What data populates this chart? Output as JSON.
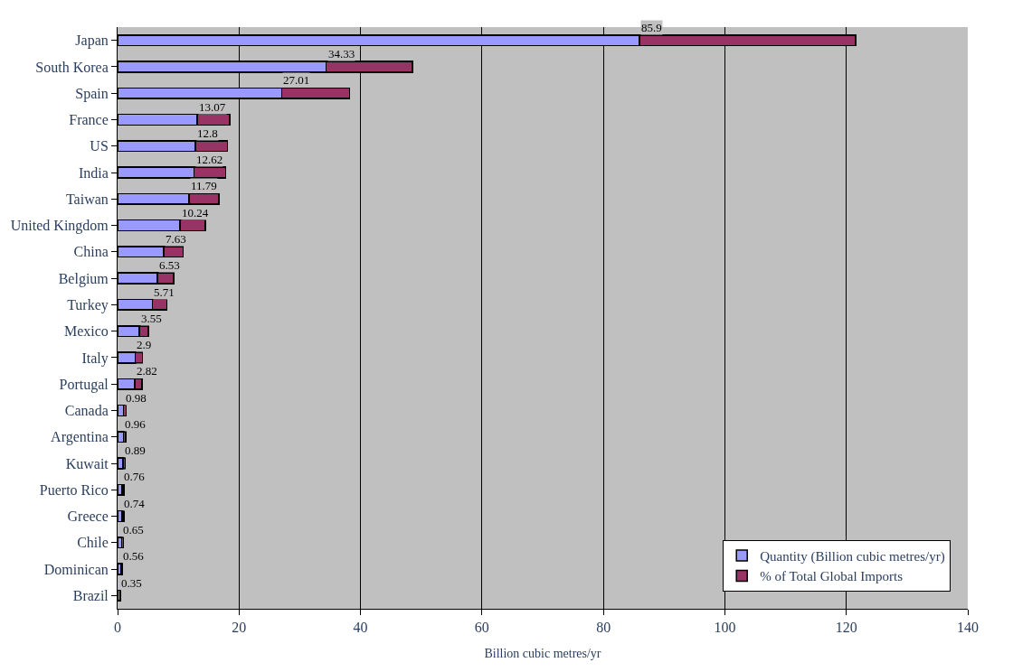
{
  "chart_data": {
    "type": "bar",
    "orientation": "horizontal",
    "stacked": true,
    "xlabel": "Billion cubic metres/yr",
    "categories": [
      "Japan",
      "South Korea",
      "Spain",
      "France",
      "US",
      "India",
      "Taiwan",
      "United Kingdom",
      "China",
      "Belgium",
      "Turkey",
      "Mexico",
      "Italy",
      "Portugal",
      "Canada",
      "Argentina",
      "Kuwait",
      "Puerto Rico",
      "Greece",
      "Chile",
      "Dominican",
      "Brazil"
    ],
    "series": [
      {
        "name": "Quantity (Billion cubic metres/yr)",
        "color": "#9999ff",
        "values": [
          85.9,
          34.33,
          27.01,
          13.07,
          12.8,
          12.62,
          11.79,
          10.24,
          7.63,
          6.53,
          5.71,
          3.55,
          2.9,
          2.82,
          0.98,
          0.96,
          0.89,
          0.76,
          0.74,
          0.65,
          0.56,
          0.35
        ],
        "value_labels": [
          "85.9",
          "34.33",
          "27.01",
          "13.07",
          "12.8",
          "12.62",
          "11.79",
          "10.24",
          "7.63",
          "6.53",
          "5.71",
          "3.55",
          "2.9",
          "2.82",
          "0.98",
          "0.96",
          "0.89",
          "0.76",
          "0.74",
          "0.65",
          "0.56",
          "0.35"
        ]
      },
      {
        "name": "% of Total Global Imports",
        "color": "#993366",
        "values": [
          35.6,
          14.2,
          11.2,
          5.4,
          5.3,
          5.2,
          4.9,
          4.2,
          3.2,
          2.7,
          2.4,
          1.5,
          1.2,
          1.2,
          0.4,
          0.4,
          0.4,
          0.3,
          0.3,
          0.3,
          0.2,
          0.1
        ]
      }
    ],
    "xlim": [
      0,
      140
    ],
    "xticks": [
      0,
      20,
      40,
      60,
      80,
      100,
      120,
      140
    ],
    "grid": "x",
    "legend": "bottom right"
  }
}
